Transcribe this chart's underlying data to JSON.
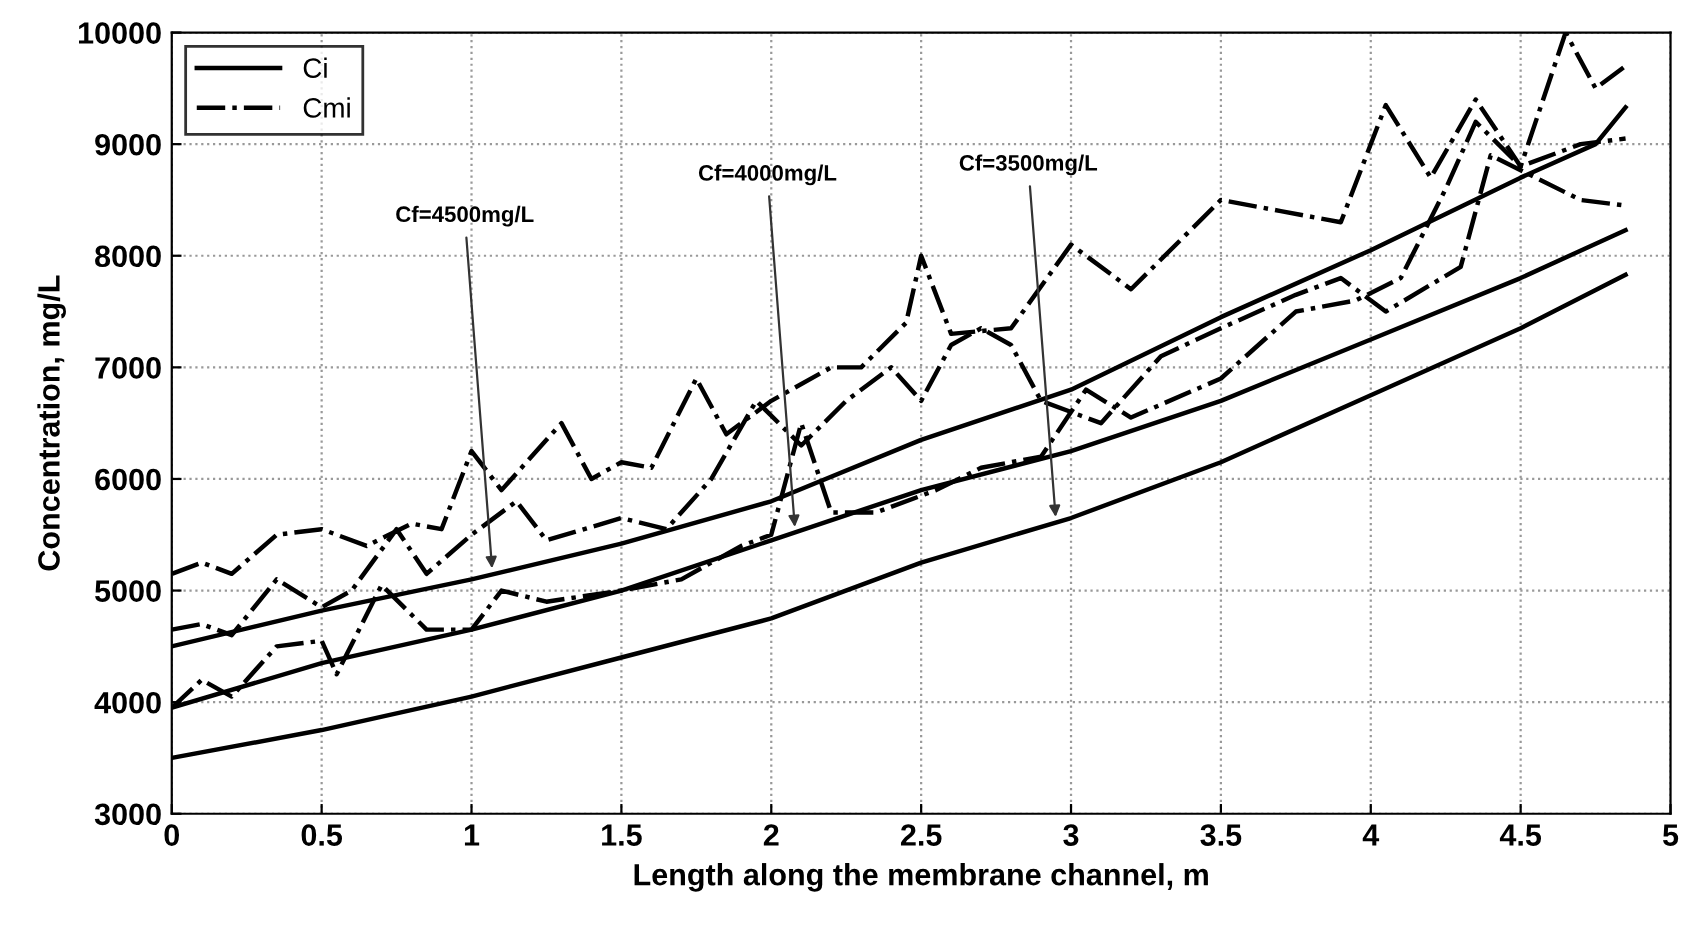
{
  "chart_data": {
    "type": "line",
    "xlabel": "Length along the membrane channel, m",
    "ylabel": "Concentration, mg/L",
    "xlim": [
      0,
      5
    ],
    "ylim": [
      3000,
      10000
    ],
    "xticks": [
      0,
      0.5,
      1,
      1.5,
      2,
      2.5,
      3,
      3.5,
      4,
      4.5,
      5
    ],
    "yticks": [
      3000,
      4000,
      5000,
      6000,
      7000,
      8000,
      9000,
      10000
    ],
    "grid": true,
    "legend": "top left",
    "marker": "none",
    "series": [
      {
        "name": "Ci",
        "color": "#000000",
        "line_style": "solid",
        "x": [
          0,
          0.5,
          1,
          1.5,
          2,
          2.5,
          3,
          3.5,
          4,
          4.5,
          4.75,
          4.85
        ],
        "values": [
          4500,
          4820,
          5100,
          5420,
          5800,
          6350,
          6800,
          7450,
          8050,
          8700,
          9000,
          9330
        ]
      },
      {
        "color": "#000000",
        "line_style": "solid",
        "x": [
          0,
          0.5,
          1,
          1.5,
          2,
          2.5,
          3,
          3.5,
          4,
          4.5,
          4.85
        ],
        "values": [
          3950,
          4350,
          4650,
          5000,
          5450,
          5900,
          6250,
          6700,
          7250,
          7800,
          8230
        ]
      },
      {
        "color": "#000000",
        "line_style": "solid",
        "x": [
          0,
          0.5,
          1,
          1.5,
          2,
          2.5,
          3,
          3.5,
          4,
          4.5,
          4.85
        ],
        "values": [
          3500,
          3750,
          4050,
          4400,
          4750,
          5250,
          5650,
          6150,
          6750,
          7350,
          7830
        ]
      },
      {
        "name": "Cmi",
        "color": "#000000",
        "line_style": "dashdot",
        "x": [
          0,
          0.1,
          0.2,
          0.35,
          0.5,
          0.65,
          0.8,
          0.9,
          1.0,
          1.1,
          1.3,
          1.4,
          1.5,
          1.6,
          1.75,
          1.85,
          2,
          2.2,
          2.3,
          2.45,
          2.5,
          2.6,
          2.8,
          3,
          3.2,
          3.5,
          3.7,
          3.9,
          4.05,
          4.2,
          4.35,
          4.5,
          4.65,
          4.75,
          4.85
        ],
        "values": [
          5150,
          5250,
          5150,
          5500,
          5550,
          5400,
          5600,
          5550,
          6250,
          5900,
          6500,
          6000,
          6150,
          6100,
          6900,
          6400,
          6700,
          7000,
          7000,
          7400,
          8000,
          7300,
          7350,
          8100,
          7700,
          8500,
          8400,
          8300,
          9350,
          8700,
          9400,
          8800,
          10000,
          9500,
          9700
        ]
      },
      {
        "color": "#000000",
        "line_style": "dashdot",
        "x": [
          0,
          0.1,
          0.2,
          0.35,
          0.5,
          0.6,
          0.75,
          0.85,
          1.0,
          1.15,
          1.25,
          1.5,
          1.65,
          1.8,
          1.95,
          2.1,
          2.25,
          2.4,
          2.5,
          2.6,
          2.7,
          2.8,
          2.9,
          3.1,
          3.3,
          3.5,
          3.75,
          3.9,
          4.05,
          4.3,
          4.4,
          4.55,
          4.7,
          4.85
        ],
        "values": [
          4650,
          4700,
          4600,
          5100,
          4850,
          5000,
          5550,
          5150,
          5500,
          5800,
          5450,
          5650,
          5550,
          6000,
          6700,
          6300,
          6700,
          7000,
          6700,
          7200,
          7350,
          7200,
          6700,
          6500,
          7100,
          7350,
          7650,
          7800,
          7500,
          7900,
          8900,
          8700,
          8500,
          8450
        ]
      },
      {
        "color": "#000000",
        "line_style": "dashdot",
        "x": [
          0,
          0.1,
          0.2,
          0.35,
          0.5,
          0.55,
          0.7,
          0.85,
          1.0,
          1.1,
          1.25,
          1.5,
          1.7,
          1.9,
          2.0,
          2.1,
          2.2,
          2.35,
          2.55,
          2.7,
          2.9,
          3.05,
          3.2,
          3.5,
          3.75,
          3.95,
          4.1,
          4.25,
          4.35,
          4.5,
          4.7,
          4.85
        ],
        "values": [
          3950,
          4200,
          4050,
          4500,
          4550,
          4250,
          5050,
          4650,
          4650,
          5000,
          4900,
          5000,
          5100,
          5400,
          5500,
          6500,
          5700,
          5700,
          5900,
          6100,
          6200,
          6800,
          6550,
          6900,
          7500,
          7600,
          7800,
          8600,
          9200,
          8800,
          9000,
          9050
        ]
      }
    ],
    "annotations": [
      {
        "text": "Cf=4500mg/L",
        "x": 1.07,
        "y": 5150
      },
      {
        "text": "Cf=4000mg/L",
        "x": 2.08,
        "y": 5520
      },
      {
        "text": "Cf=3500mg/L",
        "x": 2.95,
        "y": 5610
      }
    ]
  }
}
